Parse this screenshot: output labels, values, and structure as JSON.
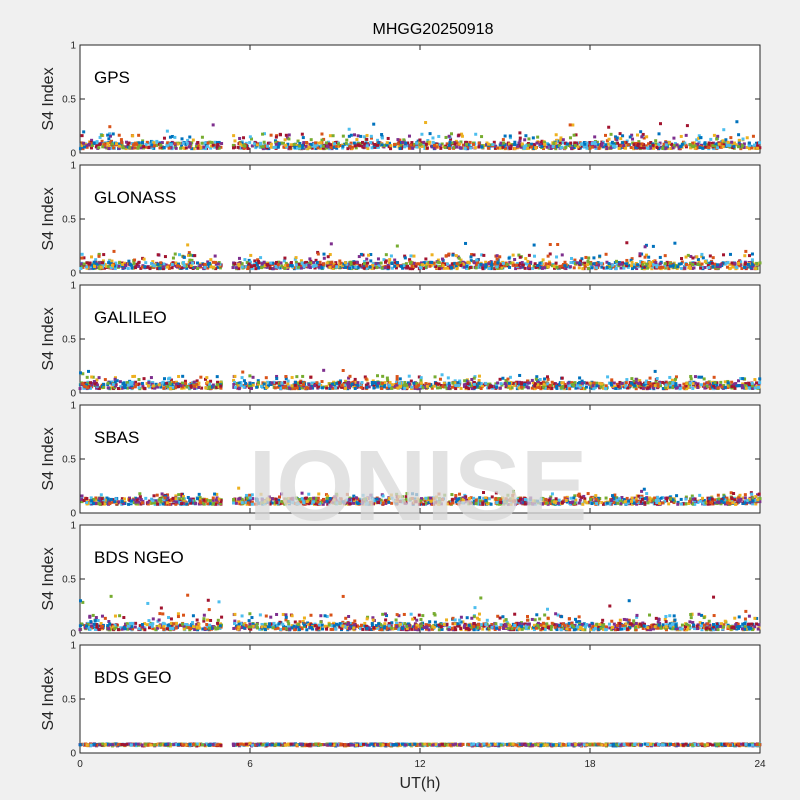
{
  "watermark": "IONISE",
  "chart_data": {
    "type": "scatter",
    "title": "MHGG20250918",
    "xlabel": "UT(h)",
    "ylabel": "S4 Index",
    "xlim": [
      0,
      24
    ],
    "ylim": [
      0,
      1
    ],
    "xticks": [
      "0",
      "6",
      "12",
      "18",
      "24"
    ],
    "yticks": [
      "0",
      "0.5",
      "1"
    ],
    "grid": false,
    "data_gap_hours": [
      5.0,
      5.4
    ],
    "series_colors": [
      "#0072BD",
      "#D95319",
      "#EDB120",
      "#7E2F8E",
      "#77AC30",
      "#4DBEEE",
      "#A2142F"
    ],
    "panels": [
      {
        "label": "GPS",
        "s4_range": [
          0.04,
          0.18
        ],
        "max_spike": 0.3,
        "samples": [
          {
            "x": 0.5,
            "y": 0.09
          },
          {
            "x": 2,
            "y": 0.08
          },
          {
            "x": 4,
            "y": 0.12
          },
          {
            "x": 4.7,
            "y": 0.26
          },
          {
            "x": 6.5,
            "y": 0.1
          },
          {
            "x": 9.5,
            "y": 0.22
          },
          {
            "x": 12,
            "y": 0.12
          },
          {
            "x": 16,
            "y": 0.14
          },
          {
            "x": 17.3,
            "y": 0.26
          },
          {
            "x": 20,
            "y": 0.15
          },
          {
            "x": 23,
            "y": 0.1
          }
        ]
      },
      {
        "label": "GLONASS",
        "s4_range": [
          0.04,
          0.18
        ],
        "max_spike": 0.28,
        "samples": [
          {
            "x": 0.5,
            "y": 0.1
          },
          {
            "x": 1.2,
            "y": 0.2
          },
          {
            "x": 3.8,
            "y": 0.26
          },
          {
            "x": 6.5,
            "y": 0.1
          },
          {
            "x": 11.2,
            "y": 0.25
          },
          {
            "x": 14,
            "y": 0.12
          },
          {
            "x": 19.3,
            "y": 0.28
          },
          {
            "x": 22,
            "y": 0.14
          },
          {
            "x": 23.5,
            "y": 0.2
          }
        ]
      },
      {
        "label": "GALILEO",
        "s4_range": [
          0.04,
          0.16
        ],
        "max_spike": 0.22,
        "samples": [
          {
            "x": 0.3,
            "y": 0.2
          },
          {
            "x": 2,
            "y": 0.08
          },
          {
            "x": 4.5,
            "y": 0.1
          },
          {
            "x": 8.6,
            "y": 0.21
          },
          {
            "x": 10.5,
            "y": 0.16
          },
          {
            "x": 13,
            "y": 0.14
          },
          {
            "x": 16.5,
            "y": 0.15
          },
          {
            "x": 20.3,
            "y": 0.2
          },
          {
            "x": 23,
            "y": 0.1
          }
        ]
      },
      {
        "label": "SBAS",
        "s4_range": [
          0.08,
          0.18
        ],
        "max_spike": 0.24,
        "samples": [
          {
            "x": 1,
            "y": 0.13
          },
          {
            "x": 3,
            "y": 0.14
          },
          {
            "x": 5.6,
            "y": 0.23
          },
          {
            "x": 9,
            "y": 0.15
          },
          {
            "x": 15.3,
            "y": 0.2
          },
          {
            "x": 20,
            "y": 0.18
          },
          {
            "x": 23,
            "y": 0.14
          }
        ]
      },
      {
        "label": "BDS NGEO",
        "s4_range": [
          0.03,
          0.18
        ],
        "max_spike": 0.36,
        "samples": [
          {
            "x": 0.5,
            "y": 0.08
          },
          {
            "x": 3.8,
            "y": 0.35
          },
          {
            "x": 4.5,
            "y": 0.12
          },
          {
            "x": 8.5,
            "y": 0.16
          },
          {
            "x": 12.5,
            "y": 0.18
          },
          {
            "x": 16.5,
            "y": 0.22
          },
          {
            "x": 18.7,
            "y": 0.25
          },
          {
            "x": 21,
            "y": 0.12
          },
          {
            "x": 23.5,
            "y": 0.2
          }
        ]
      },
      {
        "label": "BDS GEO",
        "s4_range": [
          0.06,
          0.1
        ],
        "max_spike": 0.1,
        "samples": [
          {
            "x": 0.5,
            "y": 0.08
          },
          {
            "x": 4,
            "y": 0.08
          },
          {
            "x": 6,
            "y": 0.09
          },
          {
            "x": 12,
            "y": 0.08
          },
          {
            "x": 18,
            "y": 0.08
          },
          {
            "x": 23.5,
            "y": 0.08
          }
        ]
      }
    ]
  }
}
